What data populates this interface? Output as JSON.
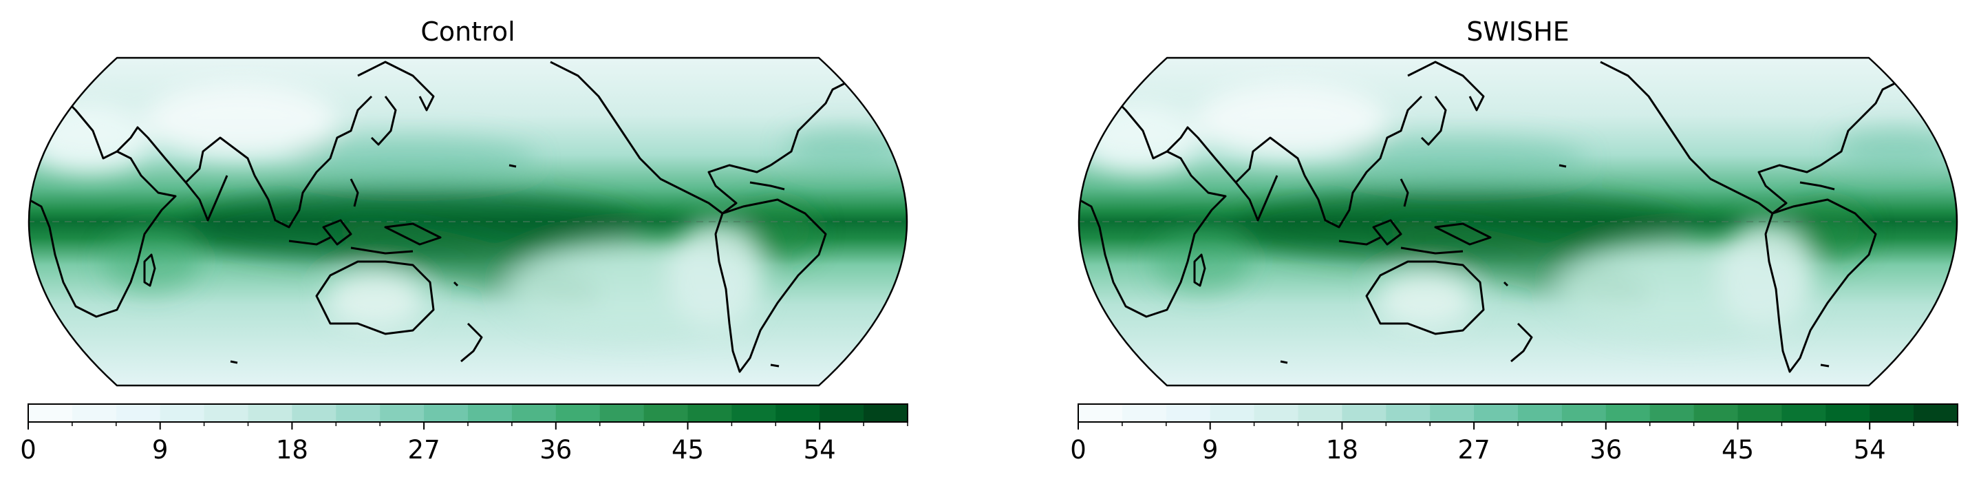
{
  "panels": [
    {
      "title": "Control"
    },
    {
      "title": "SWISHE"
    }
  ],
  "colorbar": {
    "ticks": [
      "0",
      "9",
      "18",
      "27",
      "36",
      "45",
      "54"
    ],
    "tick_values": [
      0,
      9,
      18,
      27,
      36,
      45,
      54
    ],
    "range": [
      0,
      60
    ],
    "levels": 20,
    "colormap": "BuGn",
    "colors": [
      "#f7fcfd",
      "#e5f5f9",
      "#ccece6",
      "#99d8c9",
      "#66c2a4",
      "#41ae76",
      "#238b45",
      "#006d2c",
      "#00441b"
    ]
  },
  "map": {
    "projection": "Eckert-like global",
    "central_longitude": 150,
    "features": [
      "coastlines",
      "equator"
    ]
  }
}
